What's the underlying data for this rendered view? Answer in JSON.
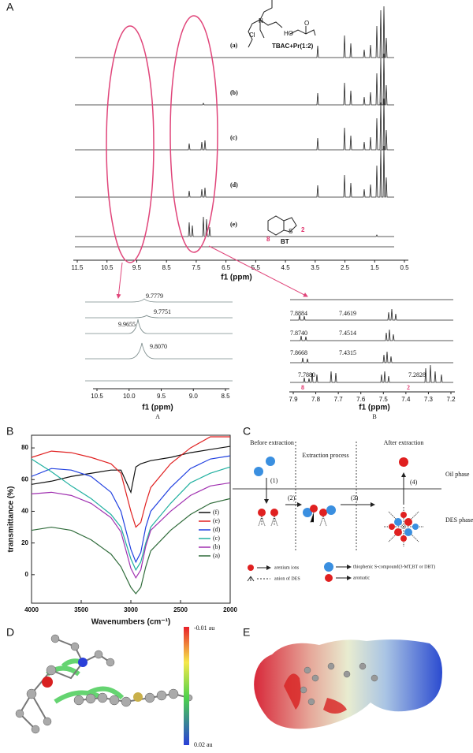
{
  "panel_a": {
    "label": "A",
    "spectra_labels": [
      "(a)",
      "(b)",
      "(c)",
      "(d)",
      "(e)"
    ],
    "mixture": "TBAC+Pr(1:2)",
    "structure_atoms": [
      "N",
      "Cl",
      "HO",
      "O",
      "S"
    ],
    "bt": "BT",
    "bt_positions": [
      "8",
      "2"
    ],
    "x_ticks": [
      "11.5",
      "10.5",
      "9.5",
      "8.5",
      "7.5",
      "6.5",
      "5.5",
      "4.5",
      "3.5",
      "2.5",
      "1.5",
      "0.5"
    ],
    "x_label": "f1 (ppm)",
    "inset_a": {
      "label": "A",
      "peaks": [
        "9.7779",
        "9.7751",
        "9.9655",
        "9.8070"
      ],
      "x_ticks": [
        "10.5",
        "10.0",
        "9.5",
        "9.0",
        "8.5"
      ],
      "x_label": "f1 (ppm)"
    },
    "inset_b": {
      "label": "B",
      "peaks": [
        "7.8884",
        "7.4619",
        "7.8740",
        "7.4514",
        "7.8668",
        "7.4315",
        "7.7880",
        "7.2828"
      ],
      "positions": [
        "8",
        "2"
      ],
      "x_ticks": [
        "7.9",
        "7.8",
        "7.7",
        "7.6",
        "7.5",
        "7.4",
        "7.3",
        "7.2"
      ],
      "x_label": "f1 (ppm)"
    }
  },
  "chart_data": {
    "type": "line",
    "panel_label": "B",
    "x_label": "Wavenumbers (cm⁻¹)",
    "y_label": "transmittance (%)",
    "x": [
      4000,
      3800,
      3600,
      3400,
      3200,
      3100,
      3000,
      2950,
      2900,
      2850,
      2800,
      2600,
      2400,
      2200,
      2000
    ],
    "series": [
      {
        "name": "(f)",
        "color": "#111111",
        "values": [
          57,
          59,
          62,
          64,
          66,
          66,
          52,
          68,
          70,
          71,
          72,
          74,
          77,
          79,
          81
        ]
      },
      {
        "name": "(e)",
        "color": "#e02020",
        "values": [
          74,
          78,
          77,
          74,
          70,
          64,
          40,
          30,
          33,
          45,
          55,
          70,
          80,
          87,
          87
        ]
      },
      {
        "name": "(d)",
        "color": "#2040e0",
        "values": [
          62,
          67,
          66,
          62,
          52,
          40,
          16,
          8,
          14,
          30,
          40,
          55,
          67,
          73,
          75
        ]
      },
      {
        "name": "(c)",
        "color": "#20b0a0",
        "values": [
          73,
          65,
          56,
          48,
          38,
          30,
          10,
          3,
          8,
          20,
          30,
          45,
          58,
          64,
          68
        ]
      },
      {
        "name": "(b)",
        "color": "#a030b0",
        "values": [
          51,
          52,
          50,
          45,
          36,
          27,
          4,
          -2,
          3,
          18,
          28,
          40,
          50,
          56,
          58
        ]
      },
      {
        "name": "(a)",
        "color": "#2f6b3a",
        "values": [
          28,
          30,
          28,
          22,
          13,
          5,
          -8,
          -12,
          -8,
          5,
          15,
          28,
          38,
          45,
          48
        ]
      }
    ],
    "xlim": [
      4000,
      2000
    ],
    "ylim": [
      -18,
      88
    ],
    "xticks": [
      4000,
      3500,
      3000,
      2500,
      2000
    ],
    "yticks": [
      0,
      20,
      40,
      60,
      80
    ],
    "legend": "upper right"
  },
  "panel_c": {
    "label": "C",
    "stages": [
      "Before extraction",
      "Extraction process",
      "After extraction"
    ],
    "phases": [
      "Oil phase",
      "DES phase"
    ],
    "steps": [
      "(1)",
      "(2)",
      "(3)",
      "(4)"
    ],
    "legend": [
      "arenium ions",
      "anion of DES",
      "thiophenic S-compound(3-MT,BT or DBT)",
      "aromatic"
    ]
  },
  "panel_d": {
    "label": "D",
    "scale_max": "-0.01 au",
    "scale_min": "0.02 au"
  },
  "panel_e": {
    "label": "E"
  }
}
